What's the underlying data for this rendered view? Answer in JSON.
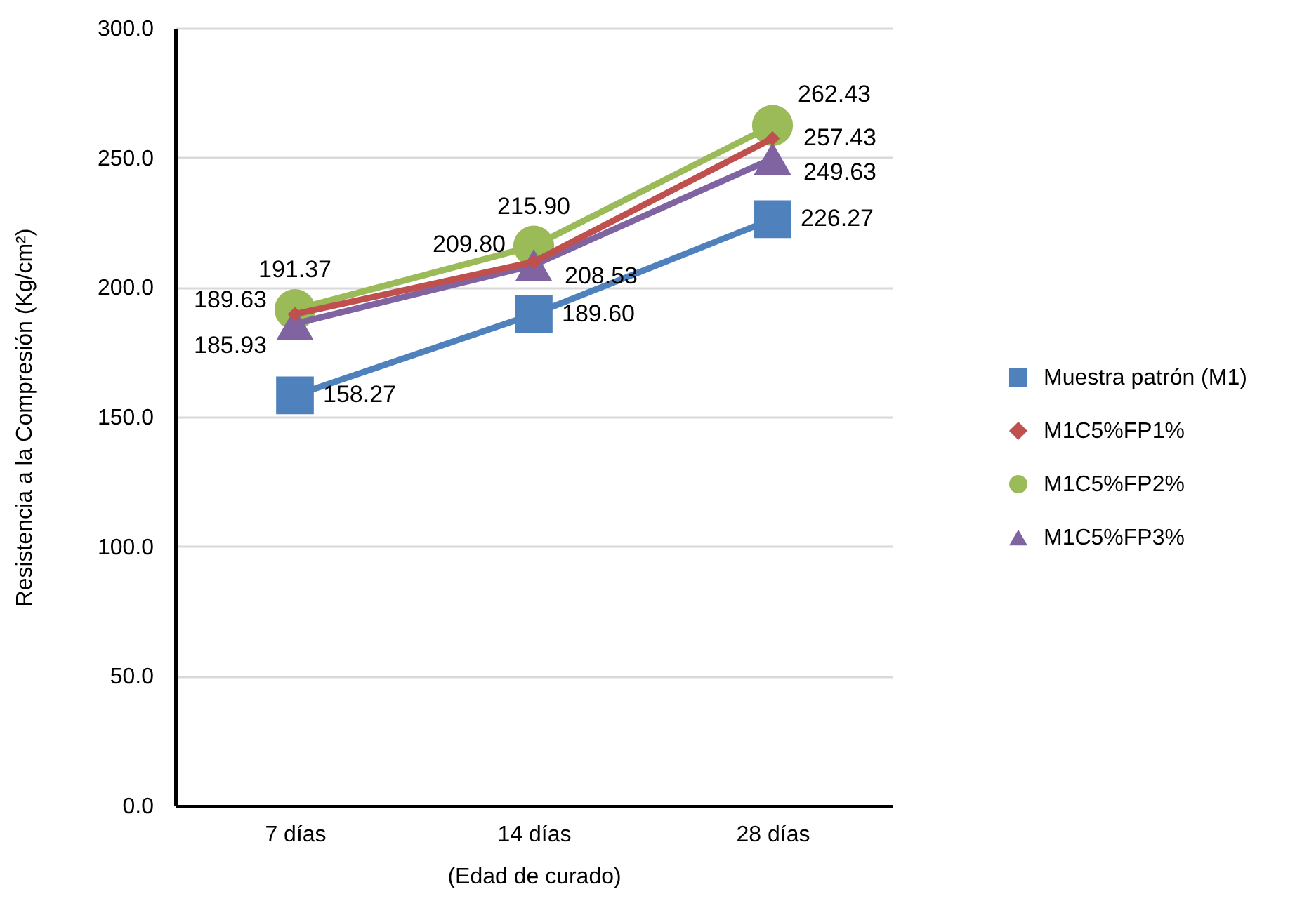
{
  "chart_data": {
    "type": "line",
    "xlabel": "(Edad de curado)",
    "ylabel": "Resistencia a la Compresión (Kg/cm²)",
    "categories": [
      "7 días",
      "14 días",
      "28 días"
    ],
    "ylim": [
      0,
      300
    ],
    "yticks": [
      {
        "value": 0,
        "label": "0.0"
      },
      {
        "value": 50,
        "label": "50.0"
      },
      {
        "value": 100,
        "label": "100.0"
      },
      {
        "value": 150,
        "label": "150.0"
      },
      {
        "value": 200,
        "label": "200.0"
      },
      {
        "value": 250,
        "label": "250.0"
      },
      {
        "value": 300,
        "label": "300.0"
      }
    ],
    "grid": "y",
    "legend": "right",
    "series": [
      {
        "name": "Muestra patrón (M1)",
        "color": "#4f81bd",
        "marker": "square",
        "values": [
          158.27,
          189.6,
          226.27
        ],
        "value_labels": [
          "158.27",
          "189.60",
          "226.27"
        ]
      },
      {
        "name": "M1C5%FP1%",
        "color": "#c0504d",
        "marker": "diamond",
        "values": [
          189.63,
          209.8,
          257.43
        ],
        "value_labels": [
          "189.63",
          "209.80",
          "257.43"
        ]
      },
      {
        "name": "M1C5%FP2%",
        "color": "#9bbb59",
        "marker": "circle",
        "values": [
          191.37,
          215.9,
          262.43
        ],
        "value_labels": [
          "191.37",
          "215.90",
          "262.43"
        ]
      },
      {
        "name": "M1C5%FP3%",
        "color": "#8064a2",
        "marker": "triangle",
        "values": [
          185.93,
          208.53,
          249.63
        ],
        "value_labels": [
          "185.93",
          "208.53",
          "249.63"
        ]
      }
    ]
  }
}
